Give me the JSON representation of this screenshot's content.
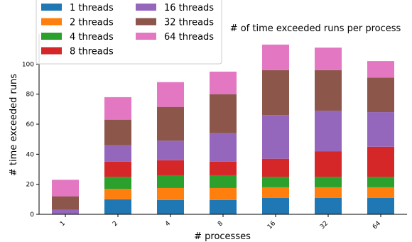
{
  "chart_data": {
    "type": "bar",
    "stacked": true,
    "title": "# of time exceeded runs per process",
    "xlabel": "# processes",
    "ylabel": "# time exceeded runs",
    "categories": [
      "1",
      "2",
      "4",
      "8",
      "16",
      "32",
      "64"
    ],
    "ylim": [
      0,
      120
    ],
    "yticks": [
      "0",
      "20",
      "40",
      "60",
      "80",
      "100"
    ],
    "legend_position": "top-left",
    "series": [
      {
        "name": "1 threads",
        "color": "#1f77b4",
        "values": [
          0,
          10,
          9.5,
          9.5,
          11,
          11,
          11
        ]
      },
      {
        "name": "2 threads",
        "color": "#ff7f0e",
        "values": [
          0,
          7,
          8,
          8,
          7,
          7,
          7
        ]
      },
      {
        "name": "4 threads",
        "color": "#2ca02c",
        "values": [
          0,
          8,
          8.5,
          8.5,
          7,
          7,
          7
        ]
      },
      {
        "name": "8 threads",
        "color": "#d62728",
        "values": [
          0,
          10,
          10,
          9,
          12,
          17,
          20
        ]
      },
      {
        "name": "16 threads",
        "color": "#9467bd",
        "values": [
          3,
          11,
          13,
          19,
          29,
          27,
          23
        ]
      },
      {
        "name": "32 threads",
        "color": "#8c564b",
        "values": [
          9,
          17,
          22.5,
          26,
          30,
          27,
          23
        ]
      },
      {
        "name": "64 threads",
        "color": "#e377c2",
        "values": [
          11,
          15,
          16.5,
          15,
          17,
          15,
          11
        ]
      }
    ]
  }
}
